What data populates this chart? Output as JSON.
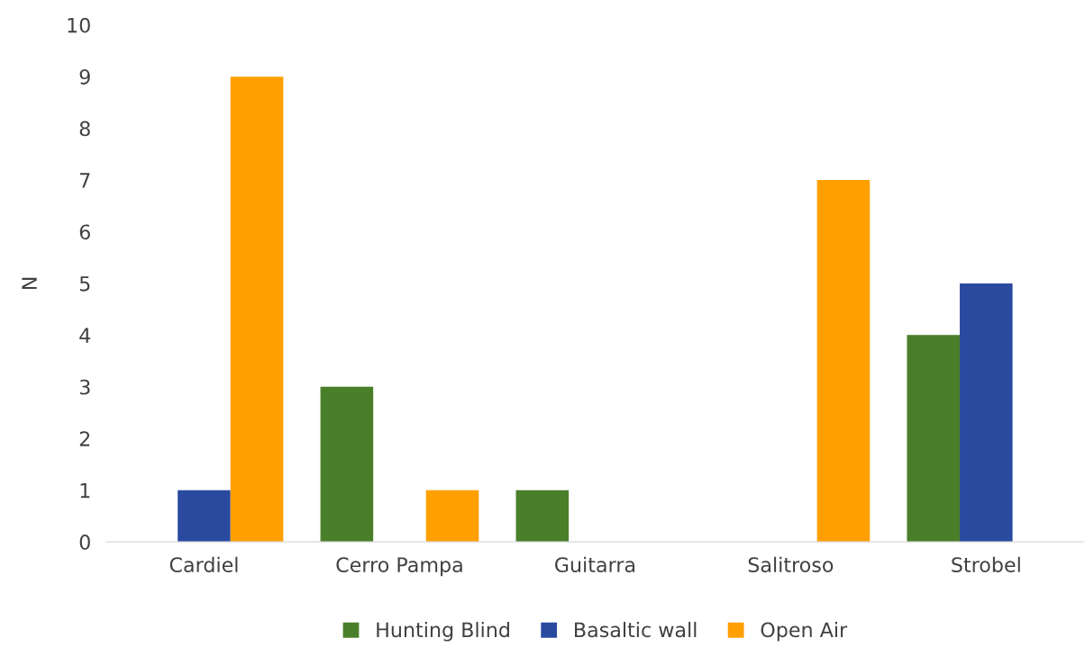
{
  "chart_data": {
    "type": "bar",
    "ylabel": "N",
    "categories": [
      "Cardiel",
      "Cerro Pampa",
      "Guitarra",
      "Salitroso",
      "Strobel"
    ],
    "series": [
      {
        "name": "Hunting Blind",
        "color": "#4a7f2a",
        "values": [
          0,
          3,
          1,
          0,
          4
        ]
      },
      {
        "name": "Basaltic wall",
        "color": "#2a4aa0",
        "values": [
          1,
          0,
          0,
          0,
          5
        ]
      },
      {
        "name": "Open Air",
        "color": "#ff9f00",
        "values": [
          9,
          1,
          0,
          7,
          0
        ]
      }
    ],
    "ylim": [
      0,
      10
    ],
    "yticks": [
      0,
      1,
      2,
      3,
      4,
      5,
      6,
      7,
      8,
      9,
      10
    ],
    "grid": false,
    "legend": "bottom"
  }
}
